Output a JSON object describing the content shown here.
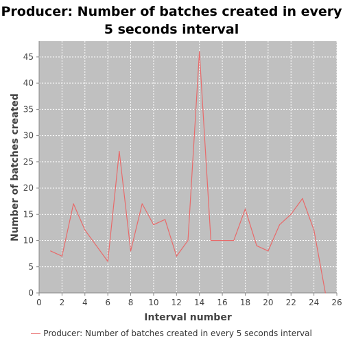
{
  "chart_data": {
    "type": "line",
    "title": "Producer: Number of batches created in every 5 seconds interval",
    "xlabel": "Interval number",
    "ylabel": "Number of batches created",
    "xlim": [
      0,
      26
    ],
    "ylim": [
      0,
      48
    ],
    "x_ticks": [
      "0",
      "2",
      "4",
      "6",
      "8",
      "10",
      "12",
      "14",
      "16",
      "18",
      "20",
      "22",
      "24",
      "26"
    ],
    "y_ticks": [
      "0",
      "5",
      "10",
      "15",
      "20",
      "25",
      "30",
      "35",
      "40",
      "45"
    ],
    "grid": true,
    "legend_position": "bottom",
    "plot_background": "#c0c0c0",
    "series": [
      {
        "name": "Producer: Number of batches created in every 5 seconds interval",
        "color": "#e86a6a",
        "x": [
          1,
          2,
          3,
          4,
          5,
          6,
          7,
          8,
          9,
          10,
          11,
          12,
          13,
          14,
          15,
          16,
          17,
          18,
          19,
          20,
          21,
          22,
          23,
          24,
          25
        ],
        "values": [
          8,
          7,
          17,
          12,
          9,
          6,
          27,
          8,
          17,
          13,
          14,
          7,
          10,
          46,
          10,
          10,
          10,
          16,
          9,
          8,
          13,
          15,
          18,
          12,
          0
        ]
      }
    ]
  }
}
